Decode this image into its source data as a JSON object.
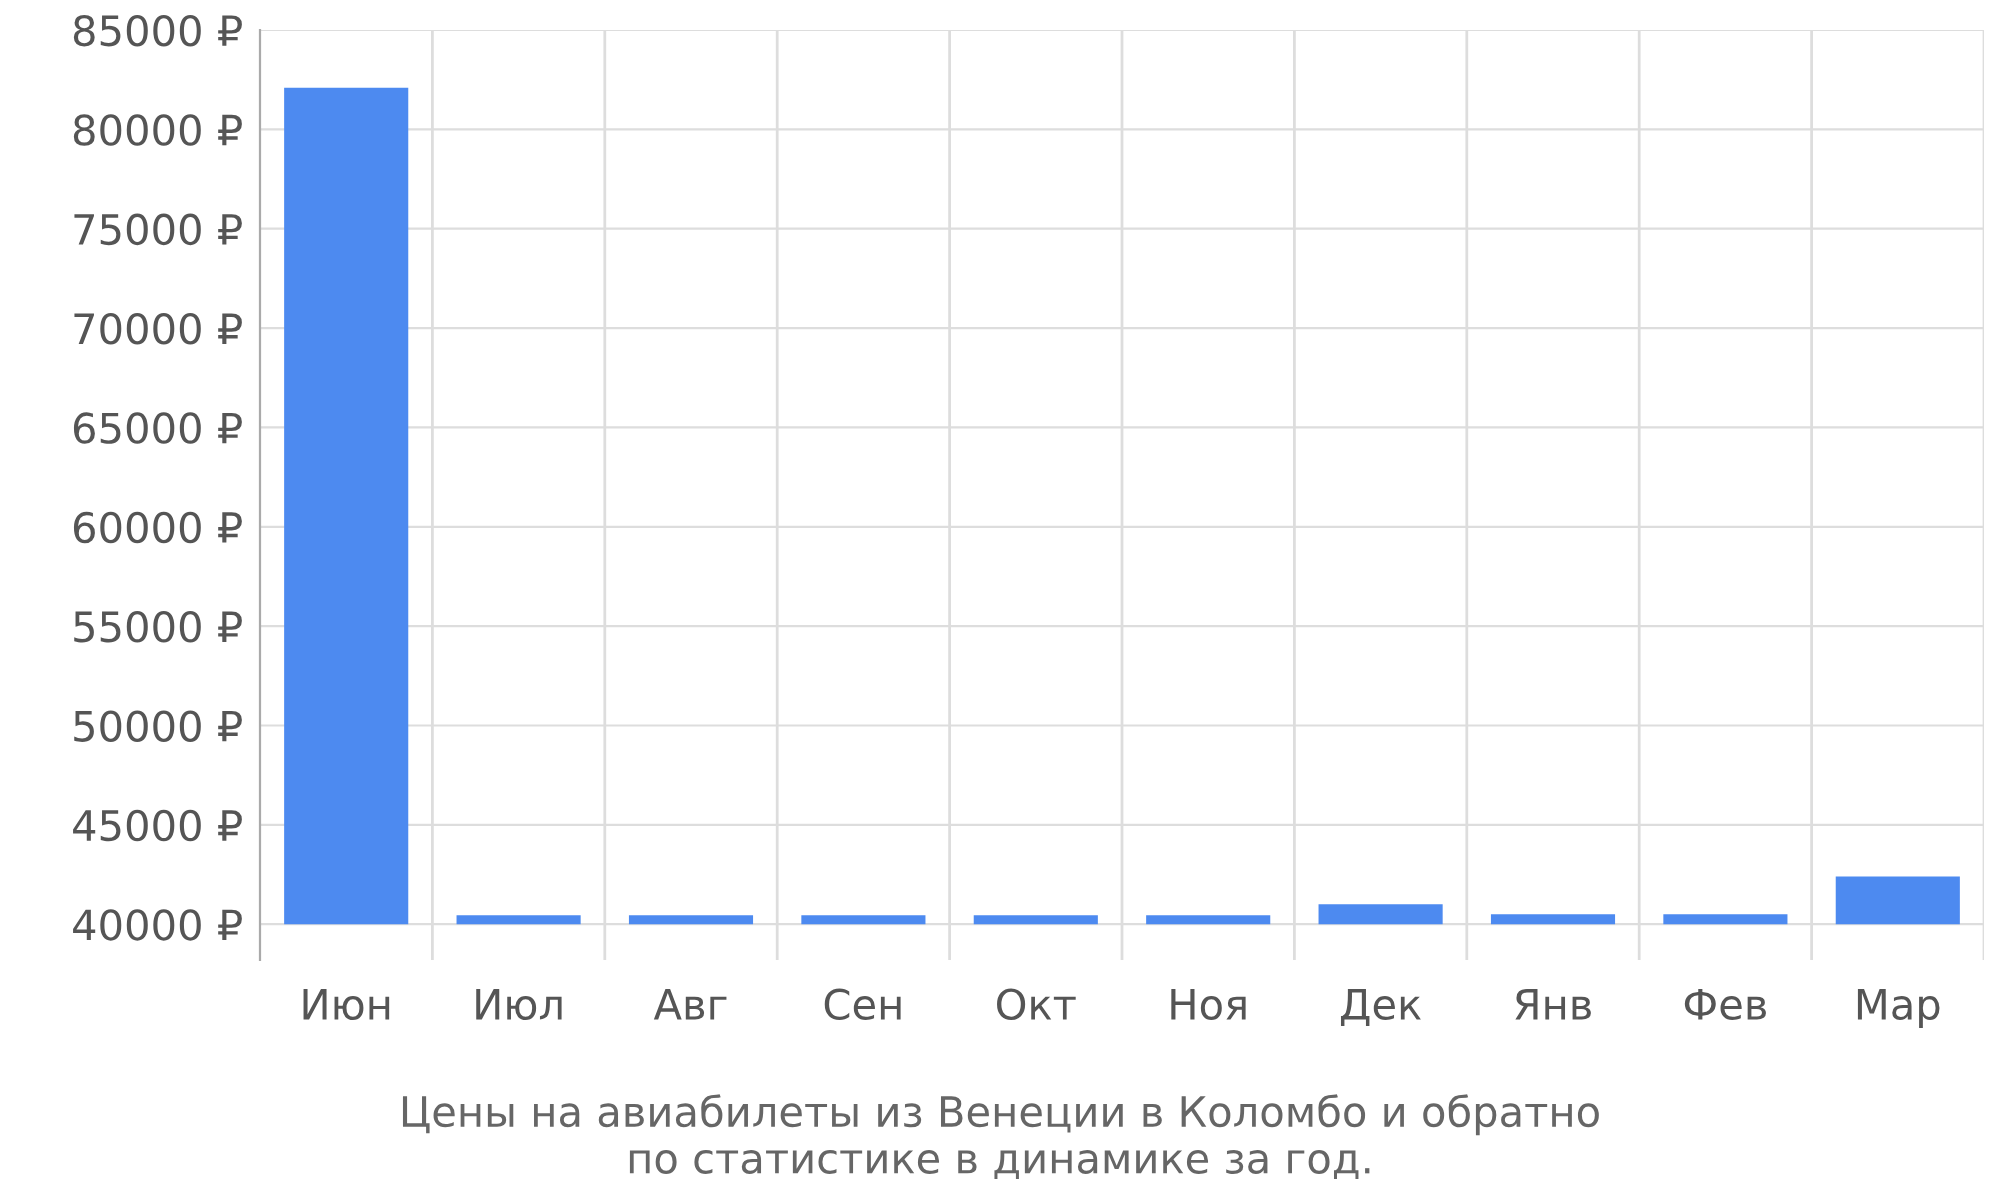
{
  "chart_data": {
    "type": "bar",
    "title": "Цены на авиабилеты из Венеции в Коломбо и обратно\nпо статистике в динамике за год.",
    "categories": [
      "Июн",
      "Июл",
      "Авг",
      "Сен",
      "Окт",
      "Ноя",
      "Дек",
      "Янв",
      "Фев",
      "Мар"
    ],
    "base": [
      40000,
      40000,
      40000,
      40000,
      40000,
      40000,
      40000,
      40000,
      40000,
      40000
    ],
    "values": [
      42100,
      450,
      450,
      450,
      450,
      450,
      1000,
      500,
      500,
      2400
    ],
    "color": "#4d8af0",
    "ylim": [
      38200,
      85000
    ],
    "yticks": [
      {
        "value": 40000,
        "label": "40000 ₽"
      },
      {
        "value": 45000,
        "label": "45000 ₽"
      },
      {
        "value": 50000,
        "label": "50000 ₽"
      },
      {
        "value": 55000,
        "label": "55000 ₽"
      },
      {
        "value": 60000,
        "label": "60000 ₽"
      },
      {
        "value": 65000,
        "label": "65000 ₽"
      },
      {
        "value": 70000,
        "label": "70000 ₽"
      },
      {
        "value": 75000,
        "label": "75000 ₽"
      },
      {
        "value": 80000,
        "label": "80000 ₽"
      },
      {
        "value": 85000,
        "label": "85000 ₽"
      }
    ],
    "grid": true
  }
}
